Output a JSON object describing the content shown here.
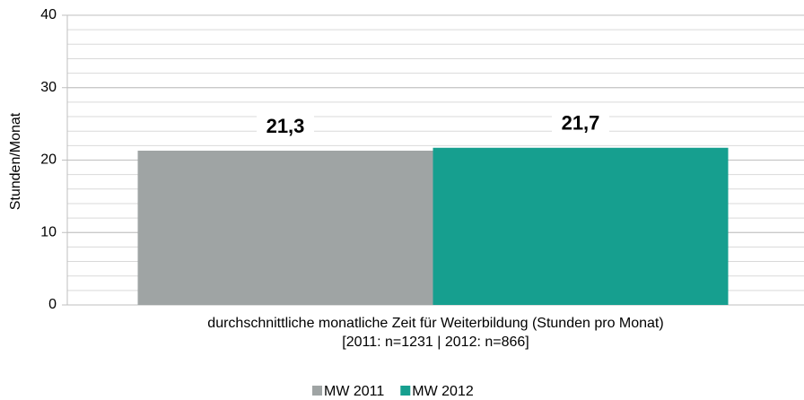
{
  "chart_data": {
    "type": "bar",
    "categories": [
      "durchschnittliche monatliche Zeit für Weiterbildung (Stunden pro Monat)\n[2011: n=1231 | 2012: n=866]"
    ],
    "series": [
      {
        "name": "MW 2011",
        "color": "#9fa4a4",
        "values": [
          21.3
        ],
        "value_labels": [
          "21,3"
        ]
      },
      {
        "name": "MW 2012",
        "color": "#169f8f",
        "values": [
          21.7
        ],
        "value_labels": [
          "21,7"
        ]
      }
    ],
    "ylabel": "Stunden/Monat",
    "ylim": [
      0,
      40
    ],
    "yticks": [
      0,
      10,
      20,
      30,
      40
    ],
    "minor_grid_step": 2,
    "grid": true,
    "legend": "bottom"
  }
}
